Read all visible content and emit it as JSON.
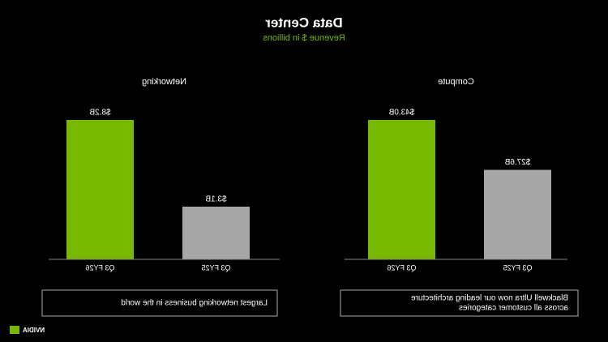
{
  "header": {
    "title": "Data Center",
    "subtitle": "Revenue $ in billions"
  },
  "chart_data": [
    {
      "type": "bar",
      "title": "Compute",
      "categories": [
        "Q3 FY25",
        "Q3 FY26"
      ],
      "values": [
        27.6,
        43.0
      ],
      "value_labels": [
        "$27.6B",
        "$43.0B"
      ],
      "colors": [
        "#a6a6a6",
        "#76b900"
      ],
      "annotation": [
        "Blackwell Ultra now our leading architecture",
        "across all customer categories"
      ]
    },
    {
      "type": "bar",
      "title": "Networking",
      "categories": [
        "Q3 FY25",
        "Q3 FY26"
      ],
      "values": [
        3.1,
        8.2
      ],
      "value_labels": [
        "$3.1B",
        "$8.2B"
      ],
      "colors": [
        "#a6a6a6",
        "#76b900"
      ],
      "annotation": [
        "Largest networking business in the world"
      ]
    }
  ],
  "footer": {
    "logo": "NVIDIA"
  }
}
